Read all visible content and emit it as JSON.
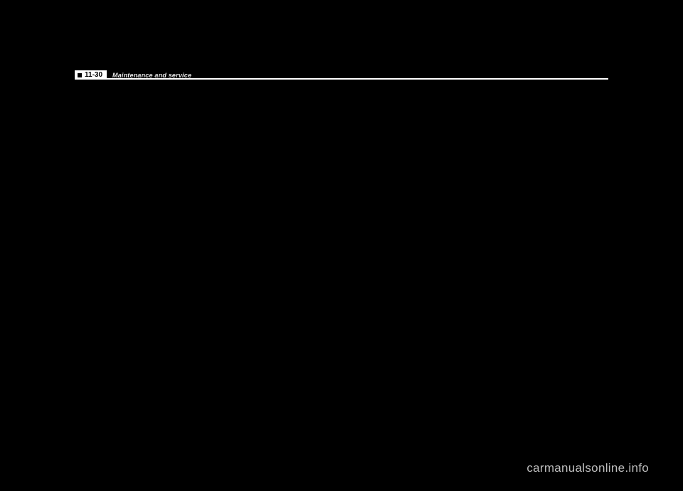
{
  "header": {
    "page_number": "11-30",
    "section_title": "Maintenance and service"
  },
  "footer": {
    "watermark": "carmanualsonline.info"
  },
  "colors": {
    "background": "#000000",
    "line": "#ffffff",
    "badge_bg": "#ffffff",
    "badge_text": "#000000",
    "section_text": "#e8e8e8",
    "watermark_text": "#bfbfbf"
  }
}
